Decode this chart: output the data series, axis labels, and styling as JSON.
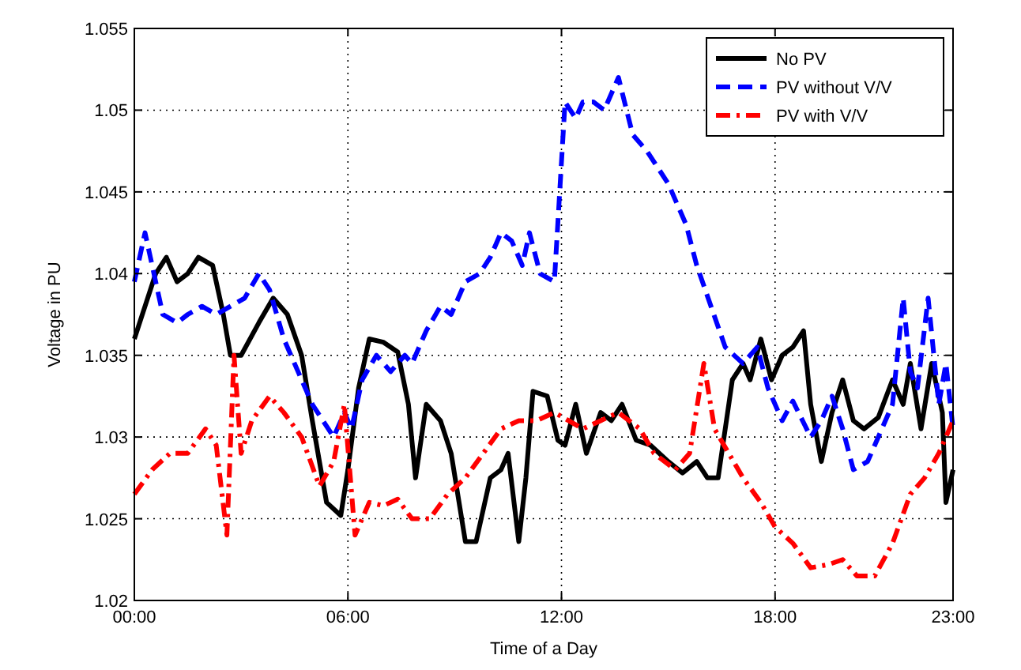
{
  "chart_data": {
    "type": "line",
    "xlabel": "Time of a Day",
    "ylabel": "Voltage in PU",
    "xlim": [
      0,
      23
    ],
    "ylim": [
      1.02,
      1.055
    ],
    "xticks": [
      {
        "value": 0,
        "label": "00:00"
      },
      {
        "value": 6,
        "label": "06:00"
      },
      {
        "value": 12,
        "label": "12:00"
      },
      {
        "value": 18,
        "label": "18:00"
      },
      {
        "value": 23,
        "label": "23:00"
      }
    ],
    "yticks": [
      1.02,
      1.025,
      1.03,
      1.035,
      1.04,
      1.045,
      1.05,
      1.055
    ],
    "grid": true,
    "legend": "top right",
    "series": [
      {
        "name": "No PV",
        "color": "#000000",
        "line_style": "solid",
        "x": [
          0,
          0.3,
          0.6,
          0.9,
          1.2,
          1.5,
          1.8,
          2.2,
          2.5,
          2.7,
          3,
          3.5,
          3.9,
          4.3,
          4.7,
          5,
          5.4,
          5.8,
          6,
          6.3,
          6.6,
          7,
          7.4,
          7.7,
          7.9,
          8.2,
          8.6,
          8.9,
          9.3,
          9.6,
          10,
          10.3,
          10.5,
          10.8,
          11,
          11.2,
          11.6,
          11.9,
          12.1,
          12.4,
          12.7,
          13.1,
          13.4,
          13.7,
          14.1,
          14.5,
          15,
          15.4,
          15.8,
          16.1,
          16.4,
          16.8,
          17.1,
          17.3,
          17.6,
          17.9,
          18.2,
          18.5,
          18.8,
          19,
          19.3,
          19.6,
          19.9,
          20.2,
          20.5,
          20.9,
          21.3,
          21.6,
          21.8,
          22.1,
          22.4,
          22.7,
          22.8,
          23
        ],
        "values": [
          1.036,
          1.038,
          1.04,
          1.041,
          1.0395,
          1.04,
          1.041,
          1.0405,
          1.0375,
          1.035,
          1.035,
          1.037,
          1.0385,
          1.0375,
          1.035,
          1.031,
          1.026,
          1.0252,
          1.028,
          1.033,
          1.036,
          1.0358,
          1.0352,
          1.032,
          1.0275,
          1.032,
          1.031,
          1.029,
          1.0236,
          1.0236,
          1.0275,
          1.028,
          1.029,
          1.0236,
          1.0275,
          1.0328,
          1.0325,
          1.0298,
          1.0295,
          1.032,
          1.029,
          1.0315,
          1.031,
          1.032,
          1.0298,
          1.0295,
          1.0285,
          1.0278,
          1.0285,
          1.0275,
          1.0275,
          1.0335,
          1.0345,
          1.0335,
          1.036,
          1.0335,
          1.035,
          1.0355,
          1.0365,
          1.032,
          1.0285,
          1.0315,
          1.0335,
          1.031,
          1.0305,
          1.0312,
          1.0335,
          1.032,
          1.0345,
          1.0305,
          1.0345,
          1.0315,
          1.026,
          1.028
        ]
      },
      {
        "name": "PV without V/V",
        "color": "#0000ff",
        "line_style": "dashed",
        "x": [
          0,
          0.3,
          0.5,
          0.8,
          1.2,
          1.5,
          1.9,
          2.3,
          2.7,
          3.1,
          3.5,
          3.8,
          4.2,
          4.6,
          5,
          5.3,
          5.6,
          5.9,
          6.1,
          6.4,
          6.8,
          7.2,
          7.6,
          7.8,
          8.2,
          8.6,
          8.9,
          9.3,
          9.7,
          10,
          10.3,
          10.6,
          10.9,
          11.1,
          11.4,
          11.8,
          12.1,
          12.4,
          12.6,
          12.9,
          13.2,
          13.6,
          14,
          14.4,
          15,
          15.5,
          15.8,
          16.2,
          16.6,
          17.1,
          17.5,
          17.8,
          18.2,
          18.5,
          19,
          19.3,
          19.6,
          19.9,
          20.2,
          20.6,
          21,
          21.3,
          21.6,
          21.8,
          22,
          22.3,
          22.6,
          22.8,
          23
        ],
        "values": [
          1.0395,
          1.0425,
          1.0405,
          1.0375,
          1.037,
          1.0375,
          1.038,
          1.0375,
          1.038,
          1.0385,
          1.04,
          1.039,
          1.036,
          1.034,
          1.032,
          1.031,
          1.03,
          1.0315,
          1.0305,
          1.0335,
          1.035,
          1.034,
          1.035,
          1.0345,
          1.0365,
          1.038,
          1.0375,
          1.0395,
          1.04,
          1.041,
          1.0425,
          1.042,
          1.0405,
          1.0425,
          1.04,
          1.0395,
          1.0505,
          1.0495,
          1.0505,
          1.0505,
          1.05,
          1.052,
          1.0485,
          1.0475,
          1.0455,
          1.043,
          1.0405,
          1.038,
          1.0355,
          1.0345,
          1.0355,
          1.033,
          1.031,
          1.0322,
          1.03,
          1.031,
          1.0325,
          1.0305,
          1.028,
          1.0285,
          1.0305,
          1.032,
          1.0385,
          1.034,
          1.033,
          1.0385,
          1.032,
          1.0345,
          1.0305
        ]
      },
      {
        "name": "PV with V/V",
        "color": "#ff0000",
        "line_style": "dashdot",
        "x": [
          0,
          0.5,
          1,
          1.5,
          2,
          2.3,
          2.6,
          2.8,
          3,
          3.3,
          3.8,
          4.2,
          4.7,
          5.2,
          5.6,
          5.9,
          6.2,
          6.6,
          7,
          7.4,
          7.8,
          8.3,
          8.8,
          9.3,
          9.8,
          10.3,
          10.8,
          11.3,
          11.8,
          12.2,
          12.6,
          13.1,
          13.6,
          14.2,
          14.6,
          15.2,
          15.6,
          16,
          16.3,
          16.7,
          17.1,
          17.6,
          18,
          18.5,
          19,
          19.5,
          19.9,
          20.3,
          20.8,
          21.3,
          21.8,
          22.2,
          22.6,
          23
        ],
        "values": [
          1.0265,
          1.028,
          1.029,
          1.029,
          1.0305,
          1.0295,
          1.024,
          1.035,
          1.029,
          1.031,
          1.0325,
          1.0315,
          1.03,
          1.027,
          1.0285,
          1.032,
          1.024,
          1.026,
          1.0258,
          1.0262,
          1.025,
          1.025,
          1.0265,
          1.0275,
          1.029,
          1.0305,
          1.031,
          1.031,
          1.0315,
          1.031,
          1.0305,
          1.031,
          1.0315,
          1.0305,
          1.029,
          1.028,
          1.029,
          1.0345,
          1.0305,
          1.029,
          1.0275,
          1.026,
          1.0245,
          1.0235,
          1.022,
          1.0222,
          1.0225,
          1.0215,
          1.0215,
          1.0235,
          1.0265,
          1.0275,
          1.029,
          1.031
        ]
      }
    ]
  }
}
